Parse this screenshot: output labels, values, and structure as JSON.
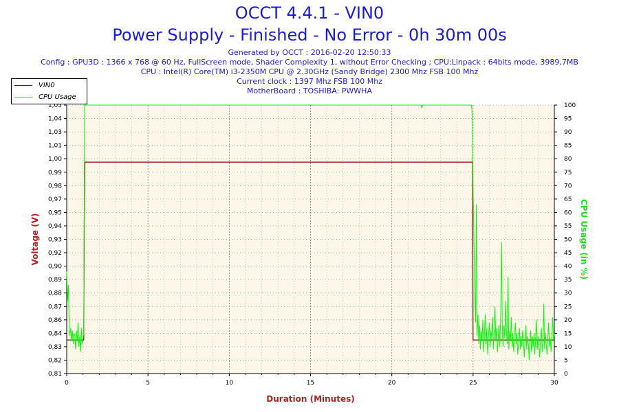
{
  "chart_data": {
    "type": "line",
    "title": "OCCT 4.4.1 - VIN0",
    "subtitle": "Power Supply - Finished - No Error - 0h 30m 00s",
    "info_lines": [
      "Generated by OCCT : 2016-02-20 12:50:33",
      "Config : GPU3D : 1366 x 768 @ 60 Hz, FullScreen mode, Shader Complexity 1, without Error Checking ; CPU:Linpack : 64bits mode, 3989,7MB",
      "CPU : Intel(R) Core(TM) i3-2350M CPU @ 2.30GHz (Sandy Bridge) 2300 Mhz FSB 100 Mhz",
      "Current clock : 1397 Mhz FSB 100 Mhz",
      "MotherBoard : TOSHIBA: PWWHA"
    ],
    "xlabel": "Duration (Minutes)",
    "ylabel_left": "Voltage (V)",
    "ylabel_right": "CPU Usage (in %)",
    "xlim": [
      0,
      30
    ],
    "ylim_left": [
      0.81,
      1.05
    ],
    "ylim_right": [
      0,
      100
    ],
    "x_ticks": [
      "0",
      "5",
      "10",
      "15",
      "20",
      "25",
      "30"
    ],
    "y_left_ticks": [
      "0,81",
      "0,82",
      "0,83",
      "0,84",
      "0,86",
      "0,87",
      "0,88",
      "0,89",
      "0,90",
      "0,92",
      "0,93",
      "0,94",
      "0,95",
      "0,97",
      "0,98",
      "0,99",
      "1,00",
      "1,01",
      "1,03",
      "1,04",
      "1,05"
    ],
    "y_right_ticks": [
      "0",
      "5",
      "10",
      "15",
      "20",
      "25",
      "30",
      "35",
      "40",
      "45",
      "50",
      "55",
      "60",
      "65",
      "70",
      "75",
      "80",
      "85",
      "90",
      "95",
      "100"
    ],
    "grid": true,
    "legend_position": "top-left",
    "series": [
      {
        "name": "VIN0",
        "axis": "left",
        "color": "#8b0000",
        "points": [
          [
            0,
            0.84
          ],
          [
            1.05,
            0.84
          ],
          [
            1.08,
            0.945
          ],
          [
            1.12,
            0.999
          ],
          [
            24.97,
            0.999
          ],
          [
            25.0,
            0.84
          ],
          [
            30,
            0.84
          ]
        ]
      },
      {
        "name": "CPU Usage",
        "axis": "right",
        "color": "#00ff00",
        "points": [
          [
            0.0,
            38
          ],
          [
            0.05,
            27
          ],
          [
            0.1,
            33
          ],
          [
            0.15,
            20
          ],
          [
            0.2,
            14
          ],
          [
            0.25,
            17
          ],
          [
            0.3,
            12
          ],
          [
            0.35,
            16
          ],
          [
            0.4,
            11
          ],
          [
            0.45,
            15
          ],
          [
            0.5,
            14
          ],
          [
            0.55,
            9
          ],
          [
            0.6,
            16
          ],
          [
            0.65,
            12
          ],
          [
            0.7,
            19
          ],
          [
            0.75,
            10
          ],
          [
            0.8,
            14
          ],
          [
            0.85,
            8
          ],
          [
            0.9,
            17
          ],
          [
            0.95,
            11
          ],
          [
            1.0,
            13
          ],
          [
            1.05,
            15
          ],
          [
            1.1,
            100
          ],
          [
            21.8,
            100
          ],
          [
            21.85,
            99
          ],
          [
            21.9,
            100
          ],
          [
            24.9,
            100
          ],
          [
            24.95,
            96
          ],
          [
            25.0,
            70
          ],
          [
            25.05,
            52
          ],
          [
            25.1,
            31
          ],
          [
            25.15,
            19
          ],
          [
            25.2,
            63
          ],
          [
            25.25,
            14
          ],
          [
            25.3,
            22
          ],
          [
            25.35,
            11
          ],
          [
            25.4,
            18
          ],
          [
            25.45,
            9
          ],
          [
            25.5,
            16
          ],
          [
            25.55,
            12
          ],
          [
            25.6,
            20
          ],
          [
            25.65,
            8
          ],
          [
            25.7,
            15
          ],
          [
            25.75,
            22
          ],
          [
            25.8,
            11
          ],
          [
            25.85,
            17
          ],
          [
            25.9,
            7
          ],
          [
            25.95,
            14
          ],
          [
            26.0,
            19
          ],
          [
            26.05,
            10
          ],
          [
            26.1,
            16
          ],
          [
            26.15,
            13
          ],
          [
            26.2,
            21
          ],
          [
            26.25,
            9
          ],
          [
            26.3,
            15
          ],
          [
            26.35,
            25
          ],
          [
            26.4,
            12
          ],
          [
            26.45,
            17
          ],
          [
            26.5,
            8
          ],
          [
            26.55,
            14
          ],
          [
            26.6,
            18
          ],
          [
            26.65,
            10
          ],
          [
            26.7,
            22
          ],
          [
            26.75,
            49
          ],
          [
            26.8,
            15
          ],
          [
            26.85,
            10
          ],
          [
            26.9,
            18
          ],
          [
            26.95,
            13
          ],
          [
            27.0,
            27
          ],
          [
            27.05,
            16
          ],
          [
            27.1,
            11
          ],
          [
            27.15,
            36
          ],
          [
            27.2,
            9
          ],
          [
            27.25,
            16
          ],
          [
            27.3,
            12
          ],
          [
            27.35,
            21
          ],
          [
            27.4,
            10
          ],
          [
            27.45,
            15
          ],
          [
            27.5,
            8
          ],
          [
            27.55,
            14
          ],
          [
            27.6,
            19
          ],
          [
            27.65,
            11
          ],
          [
            27.7,
            15
          ],
          [
            27.75,
            7
          ],
          [
            27.8,
            12
          ],
          [
            27.85,
            17
          ],
          [
            27.9,
            9
          ],
          [
            27.95,
            14
          ],
          [
            28.0,
            10
          ],
          [
            28.05,
            16
          ],
          [
            28.1,
            12
          ],
          [
            28.15,
            6
          ],
          [
            28.2,
            13
          ],
          [
            28.25,
            18
          ],
          [
            28.3,
            9
          ],
          [
            28.35,
            14
          ],
          [
            28.4,
            11
          ],
          [
            28.45,
            5
          ],
          [
            28.5,
            12
          ],
          [
            28.55,
            16
          ],
          [
            28.6,
            8
          ],
          [
            28.65,
            14
          ],
          [
            28.7,
            10
          ],
          [
            28.75,
            15
          ],
          [
            28.8,
            7
          ],
          [
            28.85,
            13
          ],
          [
            28.9,
            20
          ],
          [
            28.95,
            9
          ],
          [
            29.0,
            14
          ],
          [
            29.05,
            11
          ],
          [
            29.1,
            6
          ],
          [
            29.15,
            13
          ],
          [
            29.2,
            17
          ],
          [
            29.25,
            8
          ],
          [
            29.3,
            12
          ],
          [
            29.35,
            26
          ],
          [
            29.4,
            9
          ],
          [
            29.45,
            15
          ],
          [
            29.5,
            11
          ],
          [
            29.55,
            7
          ],
          [
            29.6,
            14
          ],
          [
            29.65,
            19
          ],
          [
            29.7,
            10
          ],
          [
            29.75,
            13
          ],
          [
            29.8,
            8
          ],
          [
            29.85,
            15
          ],
          [
            29.9,
            21
          ],
          [
            29.95,
            12
          ],
          [
            30.0,
            15
          ]
        ]
      }
    ]
  }
}
